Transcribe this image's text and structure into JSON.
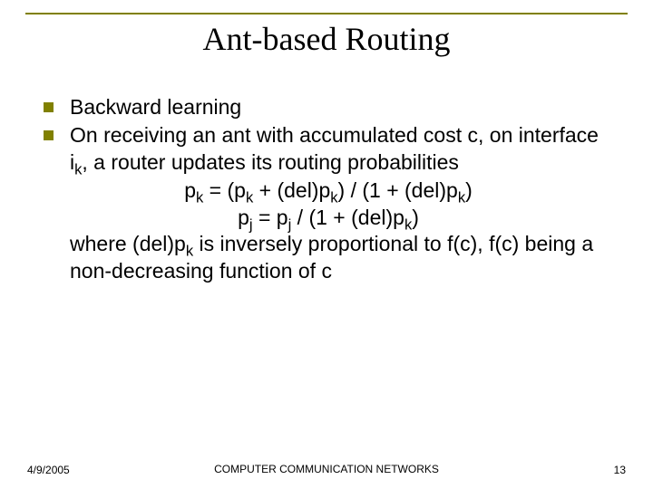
{
  "slide": {
    "title": "Ant-based Routing",
    "bullets": [
      {
        "text": "Backward learning"
      },
      {
        "text": "On receiving an ant with accumulated cost c, on interface i<sub>k</sub>, a router updates its routing probabilities"
      }
    ],
    "formula1": "p<sub>k</sub> = (p<sub>k</sub> + (del)p<sub>k</sub>) / (1 + (del)p<sub>k</sub>)",
    "formula2": "p<sub>j</sub> = p<sub>j</sub> / (1 + (del)p<sub>k</sub>)",
    "continuation": "where (del)p<sub>k</sub> is inversely proportional to f(c), f(c) being a non-decreasing function of c"
  },
  "footer": {
    "date": "4/9/2005",
    "center": "COMPUTER COMMUNICATION NETWORKS",
    "page": "13"
  },
  "colors": {
    "accent": "#808000",
    "text": "#000000",
    "background": "#ffffff"
  },
  "typography": {
    "title_font": "Times New Roman",
    "title_size_pt": 36,
    "body_font": "Arial",
    "body_size_pt": 23,
    "footer_size_pt": 12
  }
}
